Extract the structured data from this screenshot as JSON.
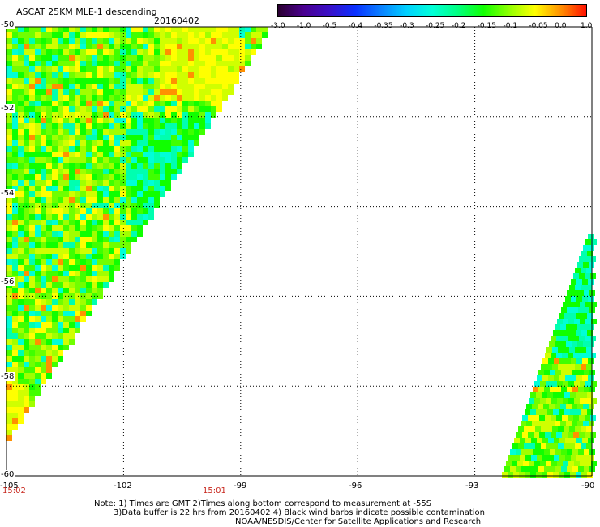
{
  "header": {
    "title": "ASCAT 25KM MLE-1 descending",
    "date": "20160402"
  },
  "colorbar": {
    "labels": [
      "-3.0",
      "-1.0",
      "-0.5",
      "-0.4",
      "-0.35",
      "-0.3",
      "-0.25",
      "-0.2",
      "-0.15",
      "-0.1",
      "-0.05",
      "0.0",
      "1.0"
    ],
    "colors": [
      "#2a0030",
      "#4a0090",
      "#3a10c8",
      "#0a30ff",
      "#0a80ff",
      "#00d0ff",
      "#00ffd8",
      "#00ff80",
      "#10ff00",
      "#90ff00",
      "#ffff00",
      "#ff9000",
      "#ff1000"
    ]
  },
  "axes": {
    "lat_labels": [
      "-50",
      "-52",
      "-54",
      "-56",
      "-58",
      "-60"
    ],
    "lon_labels": [
      "-105",
      "-102",
      "-99",
      "-96",
      "-93",
      "-90"
    ],
    "lat_range": [
      -60,
      -50
    ],
    "lon_range": [
      -105,
      -90
    ]
  },
  "times": [
    "15:02",
    "15:01"
  ],
  "notes": {
    "line1": "Note: 1) Times are GMT 2)Times along bottom correspond to measurement at -55S",
    "line2": "3)Data buffer is 22 hrs from 20160402 4) Black wind barbs indicate possible contamination",
    "line3": "NOAA/NESDIS/Center for Satellite Applications and Research"
  }
}
